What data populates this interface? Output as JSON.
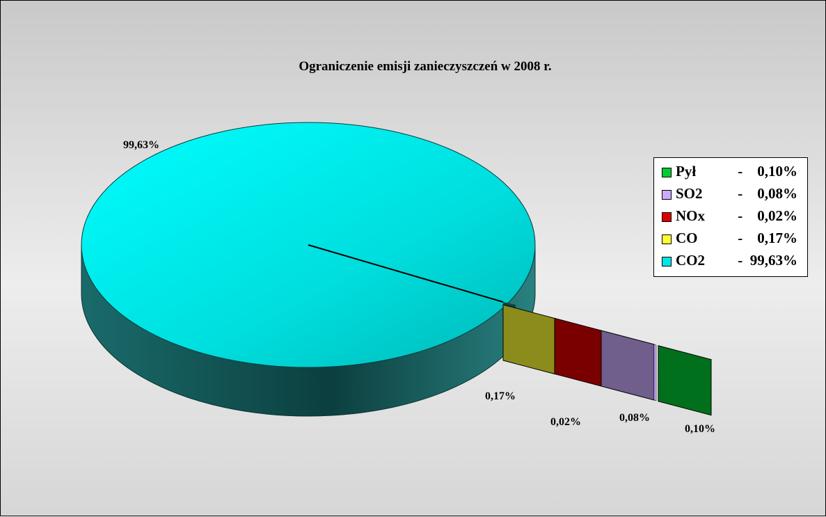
{
  "chart_data": {
    "type": "pie",
    "title": "Ograniczenie emisji zanieczyszczeń w 2008 r.",
    "three_d": true,
    "exploded_slices": [
      "CO",
      "NOx",
      "SO2",
      "Pył"
    ],
    "slices": [
      {
        "name": "Pył",
        "value": 0.1,
        "label": "0,10%",
        "color": "#00cc33",
        "legend_text": "-    0,10%"
      },
      {
        "name": "SO2",
        "value": 0.08,
        "label": "0,08%",
        "color": "#ccaaff",
        "legend_text": "-    0,08%"
      },
      {
        "name": "NOx",
        "value": 0.02,
        "label": "0,02%",
        "color": "#dd0000",
        "legend_text": "-    0,02%"
      },
      {
        "name": "CO",
        "value": 0.17,
        "label": "0,17%",
        "color": "#ffff33",
        "legend_text": "-    0,17%"
      },
      {
        "name": "CO2",
        "value": 99.63,
        "label": "99,63%",
        "color": "#00e6e6",
        "legend_text": "-  99,63%"
      }
    ],
    "legend_position": "right",
    "grid": false
  }
}
